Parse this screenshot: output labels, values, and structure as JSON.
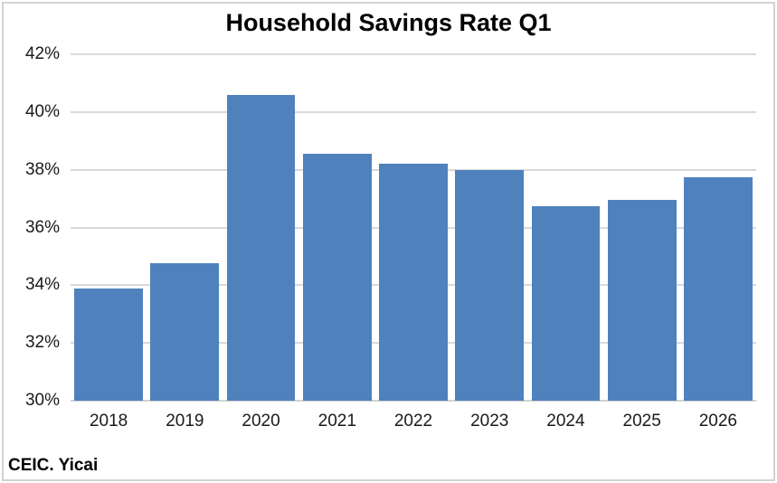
{
  "window": {
    "background": "#ffffff",
    "frame_border_color": "#d2d2d2"
  },
  "chart_data": {
    "type": "bar",
    "title": "Household Savings Rate Q1",
    "categories": [
      "2018",
      "2019",
      "2020",
      "2021",
      "2022",
      "2023",
      "2024",
      "2025",
      "2026"
    ],
    "values": [
      33.9,
      34.75,
      40.6,
      38.55,
      38.2,
      38.0,
      36.75,
      36.95,
      37.75
    ],
    "xlabel": "",
    "ylabel": "",
    "ylim": [
      30,
      42
    ],
    "ytick_step": 2,
    "ytick_labels": [
      "42%",
      "40%",
      "38%",
      "36%",
      "34%",
      "32%",
      "30%"
    ],
    "grid": true,
    "legend": false,
    "bar_color": "#4f81bd",
    "gridline_color": "#d9d9d9",
    "baseline_color": "#d3d3d3"
  },
  "footer": {
    "source_label": "CEIC. Yicai"
  }
}
